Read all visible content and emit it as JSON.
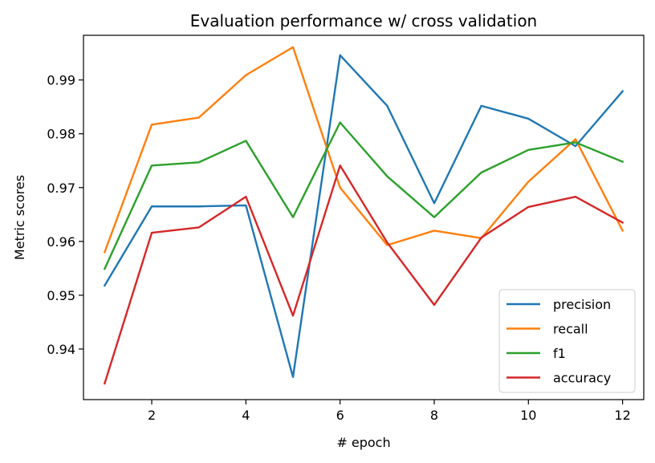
{
  "chart_data": {
    "type": "line",
    "title": "Evaluation performance w/ cross validation",
    "xlabel": "# epoch",
    "ylabel": "Metric scores",
    "x": [
      1,
      2,
      3,
      4,
      5,
      6,
      7,
      8,
      9,
      10,
      11,
      12
    ],
    "xlim": [
      0.55,
      12.45
    ],
    "ylim": [
      0.9306,
      0.9983
    ],
    "xticks": [
      2,
      4,
      6,
      8,
      10,
      12
    ],
    "yticks": [
      0.94,
      0.95,
      0.96,
      0.97,
      0.98,
      0.99
    ],
    "ytick_labels": [
      "0.94",
      "0.95",
      "0.96",
      "0.97",
      "0.98",
      "0.99"
    ],
    "grid": false,
    "legend_position": "lower right",
    "series": [
      {
        "name": "precision",
        "color": "#1f77b4",
        "values": [
          0.9518,
          0.9665,
          0.9665,
          0.9667,
          0.9348,
          0.9946,
          0.9852,
          0.9671,
          0.9852,
          0.9828,
          0.9777,
          0.9879
        ]
      },
      {
        "name": "recall",
        "color": "#ff7f0e",
        "values": [
          0.958,
          0.9817,
          0.983,
          0.9909,
          0.9961,
          0.97,
          0.9593,
          0.962,
          0.9606,
          0.9711,
          0.979,
          0.962
        ]
      },
      {
        "name": "f1",
        "color": "#2ca02c",
        "values": [
          0.9549,
          0.9741,
          0.9747,
          0.9787,
          0.9645,
          0.9821,
          0.9721,
          0.9645,
          0.9728,
          0.977,
          0.9784,
          0.9748
        ]
      },
      {
        "name": "accuracy",
        "color": "#d62728",
        "values": [
          0.9336,
          0.9616,
          0.9626,
          0.9683,
          0.9462,
          0.9741,
          0.9598,
          0.9482,
          0.9607,
          0.9664,
          0.9683,
          0.9635
        ]
      }
    ]
  }
}
